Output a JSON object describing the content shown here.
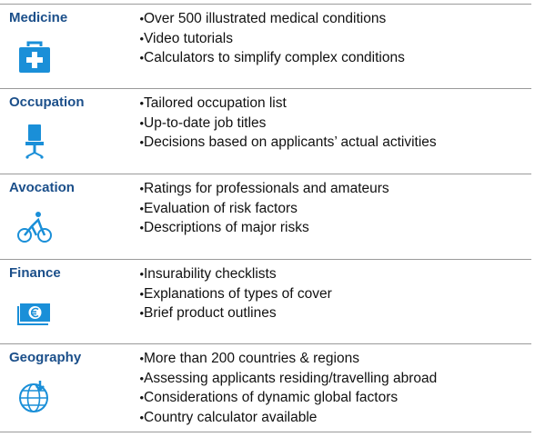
{
  "rows": [
    {
      "title": "Medicine",
      "items": [
        "Over 500 illustrated medical conditions",
        "Video tutorials",
        "Calculators to simplify complex conditions"
      ]
    },
    {
      "title": "Occupation",
      "items": [
        "Tailored occupation list",
        "Up-to-date job titles",
        "Decisions based on applicants’ actual activities"
      ]
    },
    {
      "title": "Avocation",
      "items": [
        "Ratings for professionals and amateurs",
        "Evaluation of risk factors",
        "Descriptions of major risks"
      ]
    },
    {
      "title": "Finance",
      "items": [
        "Insurability checklists",
        "Explanations of types of cover",
        "Brief product outlines"
      ]
    },
    {
      "title": "Geography",
      "items": [
        "More than 200 countries & regions",
        "Assessing applicants residing/travelling abroad",
        "Considerations of dynamic global factors",
        "Country calculator available"
      ]
    }
  ]
}
